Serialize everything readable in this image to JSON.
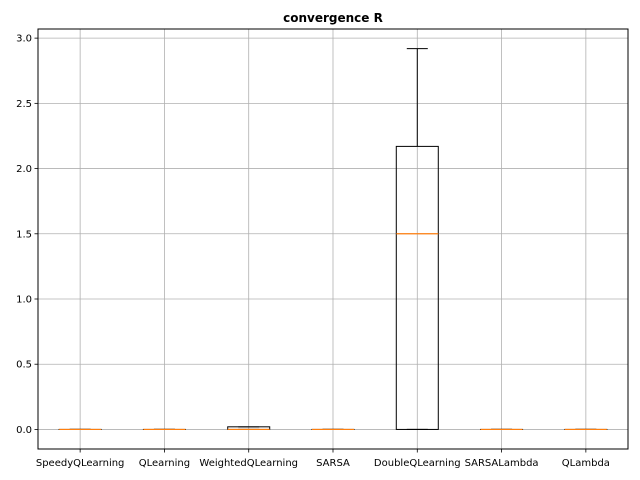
{
  "chart_data": {
    "type": "boxplot",
    "title": "convergence R",
    "xlabel": "",
    "ylabel": "",
    "ylim": [
      -0.15,
      3.07
    ],
    "yticks": [
      0.0,
      0.5,
      1.0,
      1.5,
      2.0,
      2.5,
      3.0
    ],
    "ytick_labels": [
      "0.0",
      "0.5",
      "1.0",
      "1.5",
      "2.0",
      "2.5",
      "3.0"
    ],
    "grid": true,
    "colors": {
      "box": "#000000",
      "median": "#ff7f0e",
      "grid": "#b0b0b0"
    },
    "categories": [
      "SpeedyQLearning",
      "QLearning",
      "WeightedQLearning",
      "SARSA",
      "DoubleQLearning",
      "SARSALambda",
      "QLambda"
    ],
    "boxes": [
      {
        "name": "SpeedyQLearning",
        "whisker_low": 0.0,
        "q1": 0.0,
        "median": 0.0,
        "q3": 0.0,
        "whisker_high": 0.0
      },
      {
        "name": "QLearning",
        "whisker_low": 0.0,
        "q1": 0.0,
        "median": 0.0,
        "q3": 0.0,
        "whisker_high": 0.0
      },
      {
        "name": "WeightedQLearning",
        "whisker_low": 0.0,
        "q1": 0.0,
        "median": 0.0,
        "q3": 0.02,
        "whisker_high": 0.02
      },
      {
        "name": "SARSA",
        "whisker_low": 0.0,
        "q1": 0.0,
        "median": 0.0,
        "q3": 0.0,
        "whisker_high": 0.0
      },
      {
        "name": "DoubleQLearning",
        "whisker_low": 0.0,
        "q1": 0.0,
        "median": 1.5,
        "q3": 2.17,
        "whisker_high": 2.92
      },
      {
        "name": "SARSALambda",
        "whisker_low": 0.0,
        "q1": 0.0,
        "median": 0.0,
        "q3": 0.0,
        "whisker_high": 0.0
      },
      {
        "name": "QLambda",
        "whisker_low": 0.0,
        "q1": 0.0,
        "median": 0.0,
        "q3": 0.0,
        "whisker_high": 0.0
      }
    ]
  }
}
